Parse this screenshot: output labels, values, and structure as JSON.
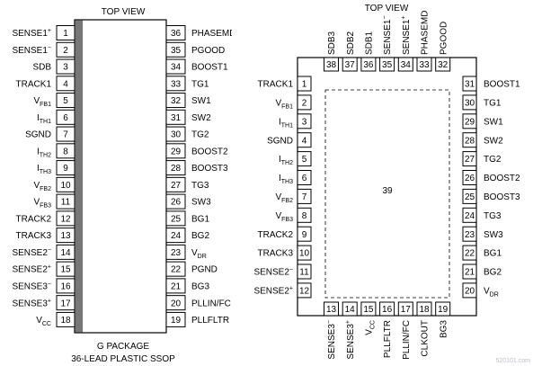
{
  "ssop": {
    "title": "TOP VIEW",
    "package_name": "G PACKAGE",
    "package_desc": "36-LEAD PLASTIC SSOP",
    "left_pins": [
      {
        "n": "1",
        "label": "SENSE1",
        "sup": "+"
      },
      {
        "n": "2",
        "label": "SENSE1",
        "sup": "−"
      },
      {
        "n": "3",
        "label": "SDB"
      },
      {
        "n": "4",
        "label": "TRACK1"
      },
      {
        "n": "5",
        "label": "V",
        "sub": "FB1"
      },
      {
        "n": "6",
        "label": "I",
        "sub": "TH1"
      },
      {
        "n": "7",
        "label": "SGND"
      },
      {
        "n": "8",
        "label": "I",
        "sub": "TH2"
      },
      {
        "n": "9",
        "label": "I",
        "sub": "TH3"
      },
      {
        "n": "10",
        "label": "V",
        "sub": "FB2"
      },
      {
        "n": "11",
        "label": "V",
        "sub": "FB3"
      },
      {
        "n": "12",
        "label": "TRACK2"
      },
      {
        "n": "13",
        "label": "TRACK3"
      },
      {
        "n": "14",
        "label": "SENSE2",
        "sup": "−"
      },
      {
        "n": "15",
        "label": "SENSE2",
        "sup": "+"
      },
      {
        "n": "16",
        "label": "SENSE3",
        "sup": "−"
      },
      {
        "n": "17",
        "label": "SENSE3",
        "sup": "+"
      },
      {
        "n": "18",
        "label": "V",
        "sub": "CC"
      }
    ],
    "right_pins": [
      {
        "n": "36",
        "label": "PHASEMD"
      },
      {
        "n": "35",
        "label": "PGOOD"
      },
      {
        "n": "34",
        "label": "BOOST1"
      },
      {
        "n": "33",
        "label": "TG1"
      },
      {
        "n": "32",
        "label": "SW1"
      },
      {
        "n": "31",
        "label": "SW2"
      },
      {
        "n": "30",
        "label": "TG2"
      },
      {
        "n": "29",
        "label": "BOOST2"
      },
      {
        "n": "28",
        "label": "BOOST3"
      },
      {
        "n": "27",
        "label": "TG3"
      },
      {
        "n": "26",
        "label": "SW3"
      },
      {
        "n": "25",
        "label": "BG1"
      },
      {
        "n": "24",
        "label": "BG2"
      },
      {
        "n": "23",
        "label": "V",
        "sub": "DR"
      },
      {
        "n": "22",
        "label": "PGND"
      },
      {
        "n": "21",
        "label": "BG3"
      },
      {
        "n": "20",
        "label": "PLLIN/FC"
      },
      {
        "n": "19",
        "label": "PLLFLTR"
      }
    ]
  },
  "qfn": {
    "title": "TOP VIEW",
    "exposed_pad": "39",
    "left_pins": [
      {
        "n": "1",
        "label": "TRACK1"
      },
      {
        "n": "2",
        "label": "V",
        "sub": "FB1"
      },
      {
        "n": "3",
        "label": "I",
        "sub": "TH1"
      },
      {
        "n": "4",
        "label": "SGND"
      },
      {
        "n": "5",
        "label": "I",
        "sub": "TH2"
      },
      {
        "n": "6",
        "label": "I",
        "sub": "TH3"
      },
      {
        "n": "7",
        "label": "V",
        "sub": "FB2"
      },
      {
        "n": "8",
        "label": "V",
        "sub": "FB3"
      },
      {
        "n": "9",
        "label": "TRACK2"
      },
      {
        "n": "10",
        "label": "TRACK3"
      },
      {
        "n": "11",
        "label": "SENSE2",
        "sup": "−"
      },
      {
        "n": "12",
        "label": "SENSE2",
        "sup": "+"
      }
    ],
    "right_pins": [
      {
        "n": "31",
        "label": "BOOST1"
      },
      {
        "n": "30",
        "label": "TG1"
      },
      {
        "n": "29",
        "label": "SW1"
      },
      {
        "n": "28",
        "label": "SW2"
      },
      {
        "n": "27",
        "label": "TG2"
      },
      {
        "n": "26",
        "label": "BOOST2"
      },
      {
        "n": "25",
        "label": "BOOST3"
      },
      {
        "n": "24",
        "label": "TG3"
      },
      {
        "n": "23",
        "label": "SW3"
      },
      {
        "n": "22",
        "label": "BG1"
      },
      {
        "n": "21",
        "label": "BG2"
      },
      {
        "n": "20",
        "label": "V",
        "sub": "DR"
      }
    ],
    "top_pins": [
      {
        "n": "38",
        "label": "SDB3"
      },
      {
        "n": "37",
        "label": "SDB2"
      },
      {
        "n": "36",
        "label": "SDB1"
      },
      {
        "n": "35",
        "label": "SENSE1",
        "sup": "−"
      },
      {
        "n": "34",
        "label": "SENSE1",
        "sup": "+"
      },
      {
        "n": "33",
        "label": "PHASEMD"
      },
      {
        "n": "32",
        "label": "PGOOD"
      }
    ],
    "bottom_pins": [
      {
        "n": "13",
        "label": "SENSE3",
        "sup": "−"
      },
      {
        "n": "14",
        "label": "SENSE3",
        "sup": "+"
      },
      {
        "n": "15",
        "label": "V",
        "sub": "CC"
      },
      {
        "n": "16",
        "label": "PLLFLTR"
      },
      {
        "n": "17",
        "label": "PLLIN/FC"
      },
      {
        "n": "18",
        "label": "CLKOUT"
      },
      {
        "n": "19",
        "label": "BG3"
      }
    ]
  },
  "watermark": {
    "site": "520101.com"
  }
}
